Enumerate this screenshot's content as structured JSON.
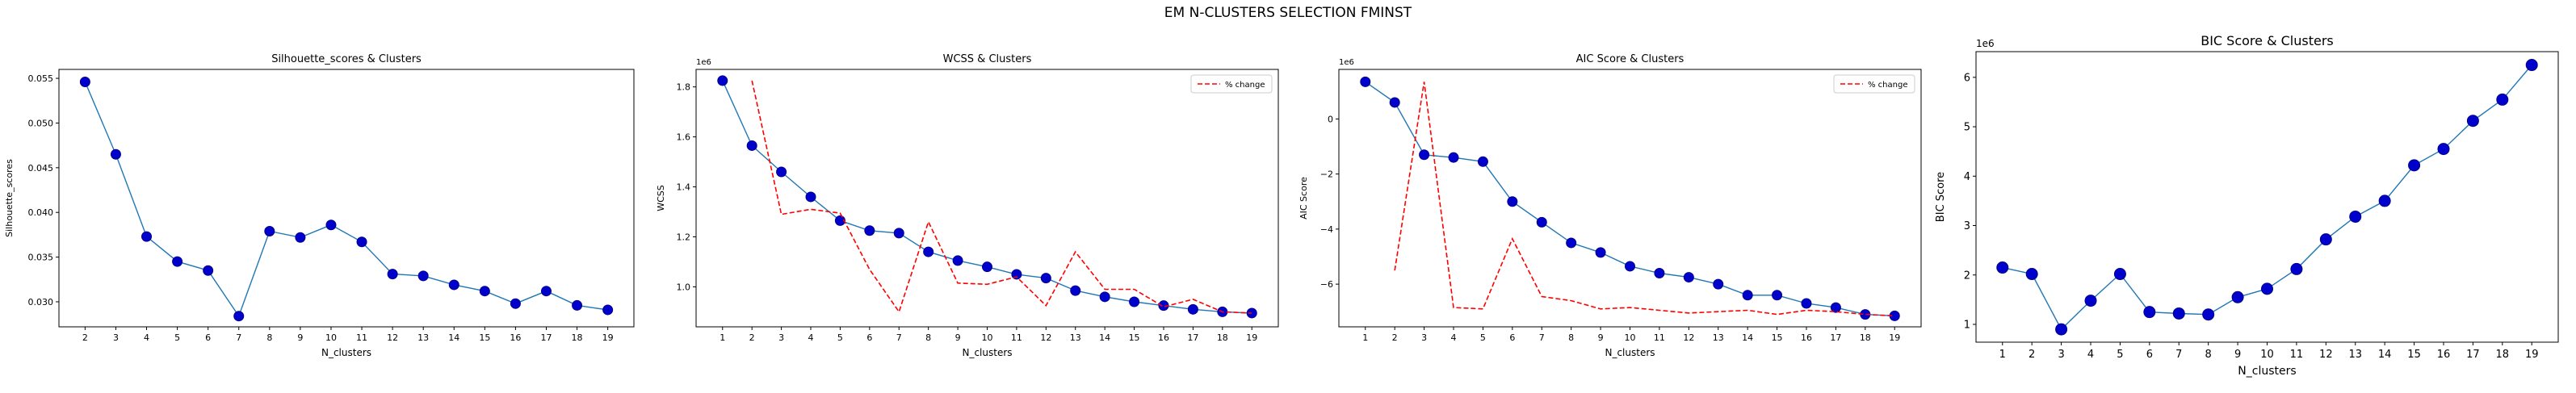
{
  "suptitle": "EM N-CLUSTERS SELECTION FMINST",
  "colors": {
    "line": "#1f77b4",
    "marker": "#0000cd",
    "marker_edge": "#00008b",
    "pct": "#ff0000"
  },
  "chart_data": [
    {
      "type": "line",
      "title": "Silhouette_scores & Clusters",
      "xlabel": "N_clusters",
      "ylabel": "Silhouette_scores",
      "offset": "",
      "x": [
        2,
        3,
        4,
        5,
        6,
        7,
        8,
        9,
        10,
        11,
        12,
        13,
        14,
        15,
        16,
        17,
        18,
        19
      ],
      "xticks": [
        "2",
        "3",
        "4",
        "5",
        "6",
        "7",
        "8",
        "9",
        "10",
        "11",
        "12",
        "13",
        "14",
        "15",
        "16",
        "17",
        "18",
        "19"
      ],
      "series": [
        {
          "values": [
            0.0546,
            0.0465,
            0.0373,
            0.0345,
            0.0335,
            0.0284,
            0.0379,
            0.0372,
            0.0386,
            0.0367,
            0.0331,
            0.0329,
            0.0319,
            0.0312,
            0.0298,
            0.0312,
            0.0296,
            0.0291
          ]
        }
      ],
      "yticks": [
        0.03,
        0.035,
        0.04,
        0.045,
        0.05,
        0.055
      ],
      "ytick_labels": [
        "0.030",
        "0.035",
        "0.040",
        "0.045",
        "0.050",
        "0.055"
      ],
      "ylim": [
        0.0272,
        0.056
      ],
      "xlim": [
        1.15,
        19.85
      ],
      "grid": false
    },
    {
      "type": "line",
      "title": "WCSS & Clusters",
      "xlabel": "N_clusters",
      "ylabel": "WCSS",
      "offset": "1e6",
      "x": [
        1,
        2,
        3,
        4,
        5,
        6,
        7,
        8,
        9,
        10,
        11,
        12,
        13,
        14,
        15,
        16,
        17,
        18,
        19
      ],
      "xticks": [
        "1",
        "2",
        "3",
        "4",
        "5",
        "6",
        "7",
        "8",
        "9",
        "10",
        "11",
        "12",
        "13",
        "14",
        "15",
        "16",
        "17",
        "18",
        "19"
      ],
      "series": [
        {
          "values": [
            1.825,
            1.565,
            1.46,
            1.36,
            1.265,
            1.225,
            1.215,
            1.14,
            1.105,
            1.08,
            1.05,
            1.035,
            0.985,
            0.96,
            0.94,
            0.925,
            0.91,
            0.9,
            0.895
          ]
        },
        {
          "name": "% change",
          "style": "dashed",
          "x": [
            2,
            3,
            4,
            5,
            6,
            7,
            8,
            9,
            10,
            11,
            12,
            13,
            14,
            15,
            16,
            17,
            18,
            19
          ],
          "values": [
            1.825,
            1.29,
            1.31,
            1.295,
            1.07,
            0.9,
            1.26,
            1.015,
            1.01,
            1.04,
            0.925,
            1.14,
            0.99,
            0.99,
            0.92,
            0.95,
            0.9,
            0.895
          ]
        }
      ],
      "legend": "top-right",
      "yticks": [
        1.0,
        1.2,
        1.4,
        1.6,
        1.8
      ],
      "ytick_labels": [
        "1.0",
        "1.2",
        "1.4",
        "1.6",
        "1.8"
      ],
      "ylim": [
        0.84,
        1.87
      ],
      "xlim": [
        0.1,
        19.9
      ],
      "grid": false
    },
    {
      "type": "line",
      "title": "AIC Score & Clusters",
      "xlabel": "N_clusters",
      "ylabel": "AIC Score",
      "offset": "1e6",
      "x": [
        1,
        2,
        3,
        4,
        5,
        6,
        7,
        8,
        9,
        10,
        11,
        12,
        13,
        14,
        15,
        16,
        17,
        18,
        19
      ],
      "xticks": [
        "1",
        "2",
        "3",
        "4",
        "5",
        "6",
        "7",
        "8",
        "9",
        "10",
        "11",
        "12",
        "13",
        "14",
        "15",
        "16",
        "17",
        "18",
        "19"
      ],
      "series": [
        {
          "values": [
            1.35,
            0.6,
            -1.3,
            -1.4,
            -1.55,
            -3.0,
            -3.75,
            -4.5,
            -4.85,
            -5.35,
            -5.6,
            -5.75,
            -6.0,
            -6.4,
            -6.4,
            -6.7,
            -6.85,
            -7.1,
            -7.15
          ]
        },
        {
          "name": "% change",
          "style": "dashed",
          "x": [
            2,
            3,
            4,
            5,
            6,
            7,
            8,
            9,
            10,
            11,
            12,
            13,
            14,
            15,
            16,
            17,
            18,
            19
          ],
          "values": [
            -5.5,
            1.35,
            -6.85,
            -6.9,
            -4.35,
            -6.45,
            -6.6,
            -6.9,
            -6.85,
            -6.95,
            -7.05,
            -7.0,
            -6.95,
            -7.1,
            -6.95,
            -7.0,
            -7.1,
            -7.15
          ]
        }
      ],
      "legend": "top-right",
      "yticks": [
        -6,
        -4,
        -2,
        0
      ],
      "ytick_labels": [
        "−6",
        "−4",
        "−2",
        "0"
      ],
      "ylim": [
        -7.55,
        1.8
      ],
      "xlim": [
        0.1,
        19.9
      ],
      "grid": false
    },
    {
      "type": "line",
      "title": "BIC Score & Clusters",
      "xlabel": "N_clusters",
      "ylabel": "BIC Score",
      "offset": "1e6",
      "x": [
        1,
        2,
        3,
        4,
        5,
        6,
        7,
        8,
        9,
        10,
        11,
        12,
        13,
        14,
        15,
        16,
        17,
        18,
        19
      ],
      "xticks": [
        "1",
        "2",
        "3",
        "4",
        "5",
        "6",
        "7",
        "8",
        "9",
        "10",
        "11",
        "12",
        "13",
        "14",
        "15",
        "16",
        "17",
        "18",
        "19"
      ],
      "series": [
        {
          "values": [
            2.15,
            2.02,
            0.9,
            1.48,
            2.02,
            1.25,
            1.22,
            1.2,
            1.55,
            1.72,
            2.12,
            2.72,
            3.18,
            3.5,
            4.22,
            4.55,
            5.12,
            5.55,
            6.25
          ]
        }
      ],
      "yticks": [
        1,
        2,
        3,
        4,
        5,
        6
      ],
      "ytick_labels": [
        "1",
        "2",
        "3",
        "4",
        "5",
        "6"
      ],
      "ylim": [
        0.64,
        6.52
      ],
      "xlim": [
        0.1,
        19.9
      ],
      "grid": false
    }
  ]
}
